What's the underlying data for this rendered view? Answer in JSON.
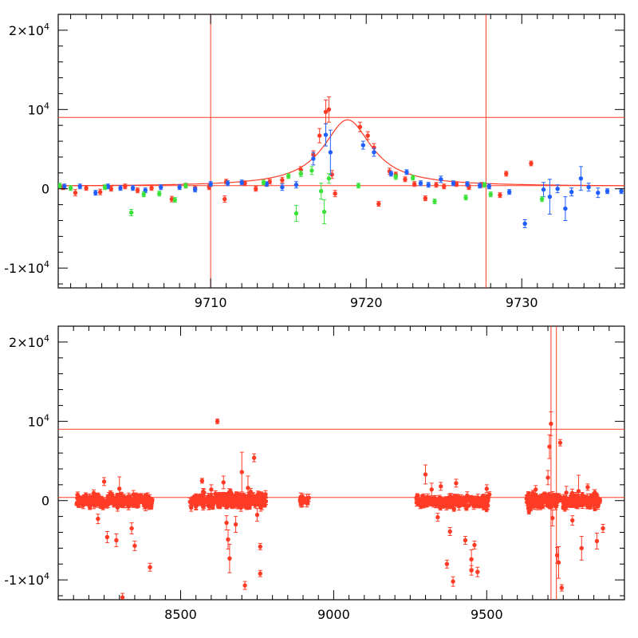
{
  "chart_data": [
    {
      "type": "scatter",
      "panel": "top",
      "xlim": [
        9700.2,
        9736.6
      ],
      "ylim": [
        -12500,
        22000
      ],
      "x_ticks": [
        {
          "value": 9710,
          "label": "9710"
        },
        {
          "value": 9720,
          "label": "9720"
        },
        {
          "value": 9730,
          "label": "9730"
        }
      ],
      "y_ticks": [
        {
          "value": 20000,
          "label": "2×10",
          "sup": "4"
        },
        {
          "value": 10000,
          "label": "10",
          "sup": "4"
        },
        {
          "value": 0,
          "label": "0",
          "sup": ""
        },
        {
          "value": -10000,
          "label": "-1×10",
          "sup": "4"
        }
      ],
      "reference_lines": {
        "vertical": [
          9710.0,
          9727.7
        ],
        "horizontal": [
          9000,
          400
        ]
      },
      "model_curve": {
        "baseline": 300,
        "peak": 8700,
        "t0": 9718.8,
        "width": 1.9
      },
      "series": [
        {
          "color": "#ff3b26",
          "points": [
            [
              9700.5,
              200,
              300
            ],
            [
              9701.3,
              -500,
              400
            ],
            [
              9702.0,
              100,
              300
            ],
            [
              9702.9,
              -400,
              350
            ],
            [
              9703.6,
              0,
              300
            ],
            [
              9704.5,
              300,
              300
            ],
            [
              9705.3,
              -200,
              300
            ],
            [
              9706.2,
              100,
              300
            ],
            [
              9707.5,
              -1300,
              350
            ],
            [
              9708.4,
              400,
              300
            ],
            [
              9709.0,
              100,
              300
            ],
            [
              9709.9,
              200,
              300
            ],
            [
              9710.9,
              -1300,
              400
            ],
            [
              9711.0,
              900,
              300
            ],
            [
              9712.2,
              700,
              300
            ],
            [
              9712.9,
              0,
              300
            ],
            [
              9713.8,
              900,
              300
            ],
            [
              9714.6,
              1100,
              350
            ],
            [
              9715.8,
              2400,
              400
            ],
            [
              9716.6,
              4300,
              500
            ],
            [
              9717.0,
              6700,
              900
            ],
            [
              9717.4,
              9700,
              1500
            ],
            [
              9717.6,
              10000,
              1600
            ],
            [
              9717.8,
              1800,
              500
            ],
            [
              9718.0,
              -600,
              400
            ],
            [
              9719.6,
              7800,
              600
            ],
            [
              9720.1,
              6700,
              500
            ],
            [
              9720.5,
              5200,
              500
            ],
            [
              9720.8,
              -1900,
              300
            ],
            [
              9721.5,
              2200,
              400
            ],
            [
              9721.9,
              1800,
              300
            ],
            [
              9722.5,
              1200,
              300
            ],
            [
              9723.1,
              600,
              300
            ],
            [
              9723.8,
              -1200,
              300
            ],
            [
              9724.5,
              500,
              300
            ],
            [
              9725.0,
              300,
              300
            ],
            [
              9725.8,
              600,
              300
            ],
            [
              9726.6,
              200,
              300
            ],
            [
              9727.4,
              500,
              300
            ],
            [
              9727.9,
              300,
              300
            ],
            [
              9729.0,
              1900,
              300
            ],
            [
              9730.6,
              3200,
              300
            ],
            [
              9728.6,
              -800,
              300
            ]
          ]
        },
        {
          "color": "#1f5fff",
          "points": [
            [
              9700.6,
              300,
              300
            ],
            [
              9701.6,
              300,
              300
            ],
            [
              9702.6,
              -500,
              300
            ],
            [
              9703.4,
              300,
              300
            ],
            [
              9704.2,
              100,
              300
            ],
            [
              9705.0,
              100,
              300
            ],
            [
              9705.8,
              -200,
              300
            ],
            [
              9706.8,
              200,
              300
            ],
            [
              9708.0,
              200,
              300
            ],
            [
              9709.0,
              -100,
              300
            ],
            [
              9710.0,
              600,
              300
            ],
            [
              9711.1,
              700,
              300
            ],
            [
              9712.0,
              800,
              300
            ],
            [
              9713.6,
              600,
              300
            ],
            [
              9714.6,
              200,
              400
            ],
            [
              9715.5,
              500,
              400
            ],
            [
              9716.6,
              3800,
              800
            ],
            [
              9717.4,
              6800,
              1400
            ],
            [
              9717.7,
              4600,
              2800
            ],
            [
              9719.8,
              5500,
              500
            ],
            [
              9720.5,
              4600,
              500
            ],
            [
              9721.6,
              1900,
              300
            ],
            [
              9722.6,
              2100,
              300
            ],
            [
              9723.5,
              700,
              300
            ],
            [
              9724.0,
              500,
              300
            ],
            [
              9724.8,
              1200,
              400
            ],
            [
              9725.6,
              700,
              300
            ],
            [
              9726.5,
              600,
              300
            ],
            [
              9727.3,
              400,
              300
            ],
            [
              9727.9,
              300,
              300
            ],
            [
              9729.2,
              -400,
              300
            ],
            [
              9730.2,
              -4400,
              500
            ],
            [
              9731.4,
              -100,
              900
            ],
            [
              9731.8,
              -1000,
              2200
            ],
            [
              9732.3,
              0,
              500
            ],
            [
              9732.8,
              -2500,
              1500
            ],
            [
              9733.2,
              -400,
              500
            ],
            [
              9733.8,
              1300,
              1500
            ],
            [
              9734.3,
              200,
              500
            ],
            [
              9734.9,
              -500,
              600
            ],
            [
              9735.5,
              -300,
              300
            ],
            [
              9736.4,
              -300,
              300
            ]
          ]
        },
        {
          "color": "#3ae23a",
          "points": [
            [
              9700.3,
              400,
              300
            ],
            [
              9701.0,
              100,
              300
            ],
            [
              9703.2,
              200,
              300
            ],
            [
              9704.9,
              -3000,
              400
            ],
            [
              9705.7,
              -700,
              300
            ],
            [
              9706.7,
              -600,
              300
            ],
            [
              9707.7,
              -1400,
              300
            ],
            [
              9708.4,
              400,
              300
            ],
            [
              9713.4,
              800,
              300
            ],
            [
              9715.0,
              1600,
              300
            ],
            [
              9715.8,
              1900,
              350
            ],
            [
              9716.5,
              2300,
              500
            ],
            [
              9717.6,
              1300,
              600
            ],
            [
              9715.5,
              -3100,
              1000
            ],
            [
              9717.1,
              -300,
              1000
            ],
            [
              9717.3,
              -2900,
              1500
            ],
            [
              9719.5,
              400,
              300
            ],
            [
              9721.9,
              1500,
              300
            ],
            [
              9723.0,
              1400,
              300
            ],
            [
              9724.4,
              -1600,
              300
            ],
            [
              9726.4,
              -1100,
              300
            ],
            [
              9728.0,
              -700,
              300
            ],
            [
              9731.3,
              -1300,
              300
            ],
            [
              9727.6,
              500,
              300
            ]
          ]
        }
      ]
    },
    {
      "type": "scatter",
      "panel": "bottom",
      "xlim": [
        8100,
        9950
      ],
      "ylim": [
        -12500,
        22000
      ],
      "x_ticks": [
        {
          "value": 8500,
          "label": "8500"
        },
        {
          "value": 9000,
          "label": "9000"
        },
        {
          "value": 9500,
          "label": "9500"
        }
      ],
      "y_ticks": [
        {
          "value": 20000,
          "label": "2×10",
          "sup": "4"
        },
        {
          "value": 10000,
          "label": "10",
          "sup": "4"
        },
        {
          "value": 0,
          "label": "0",
          "sup": ""
        },
        {
          "value": -10000,
          "label": "-1×10",
          "sup": "4"
        }
      ],
      "reference_lines": {
        "vertical": [
          9710.0,
          9727.7
        ],
        "horizontal": [
          9000,
          400
        ]
      },
      "series": [
        {
          "color": "#ff3b26",
          "clusters": [
            {
              "x": [
                8160,
                8410
              ],
              "center": 0,
              "spread": 600,
              "count": 260
            },
            {
              "x": [
                8530,
                8780
              ],
              "center": 0,
              "spread": 700,
              "count": 320
            },
            {
              "x": [
                8890,
                8920
              ],
              "center": 0,
              "spread": 400,
              "count": 25
            },
            {
              "x": [
                9270,
                9510
              ],
              "center": -100,
              "spread": 600,
              "count": 260
            },
            {
              "x": [
                9630,
                9870
              ],
              "center": 0,
              "spread": 700,
              "count": 280
            }
          ],
          "points": [
            [
              8230,
              -2300,
              600
            ],
            [
              8260,
              -4600,
              700
            ],
            [
              8290,
              -5000,
              800
            ],
            [
              8310,
              -12200,
              500
            ],
            [
              8340,
              -3500,
              700
            ],
            [
              8350,
              -5700,
              600
            ],
            [
              8400,
              -8400,
              500
            ],
            [
              8300,
              1500,
              1500
            ],
            [
              8250,
              2400,
              500
            ],
            [
              8620,
              10000,
              300
            ],
            [
              8570,
              2500,
              300
            ],
            [
              8600,
              1400,
              600
            ],
            [
              8650,
              -2800,
              900
            ],
            [
              8655,
              -4900,
              1200
            ],
            [
              8660,
              -7300,
              1800
            ],
            [
              8680,
              -3000,
              1000
            ],
            [
              8700,
              3600,
              2500
            ],
            [
              8720,
              1600,
              1500
            ],
            [
              8740,
              5400,
              500
            ],
            [
              8760,
              -5800,
              400
            ],
            [
              8710,
              -10700,
              500
            ],
            [
              8760,
              -9200,
              400
            ],
            [
              8750,
              -1800,
              800
            ],
            [
              8640,
              2300,
              800
            ],
            [
              9300,
              3300,
              1200
            ],
            [
              9320,
              1400,
              800
            ],
            [
              9350,
              1800,
              500
            ],
            [
              9400,
              2200,
              500
            ],
            [
              9340,
              -2100,
              500
            ],
            [
              9380,
              -3900,
              500
            ],
            [
              9390,
              -10200,
              600
            ],
            [
              9430,
              -5000,
              500
            ],
            [
              9450,
              -7400,
              1200
            ],
            [
              9450,
              -8800,
              600
            ],
            [
              9460,
              -5600,
              500
            ],
            [
              9470,
              -9000,
              600
            ],
            [
              9500,
              1500,
              500
            ],
            [
              9370,
              -8000,
              500
            ],
            [
              9660,
              1400,
              500
            ],
            [
              9700,
              2900,
              900
            ],
            [
              9705,
              6800,
              1500
            ],
            [
              9710,
              9700,
              1500
            ],
            [
              9715,
              -2200,
              1000
            ],
            [
              9730,
              -6900,
              1000
            ],
            [
              9735,
              -7800,
              2000
            ],
            [
              9740,
              7300,
              400
            ],
            [
              9745,
              -11000,
              400
            ],
            [
              9760,
              1000,
              800
            ],
            [
              9780,
              -2500,
              600
            ],
            [
              9800,
              1200,
              2000
            ],
            [
              9810,
              -6000,
              1500
            ],
            [
              9830,
              1700,
              400
            ],
            [
              9860,
              -5100,
              1000
            ],
            [
              9880,
              -3500,
              500
            ]
          ]
        }
      ]
    }
  ]
}
